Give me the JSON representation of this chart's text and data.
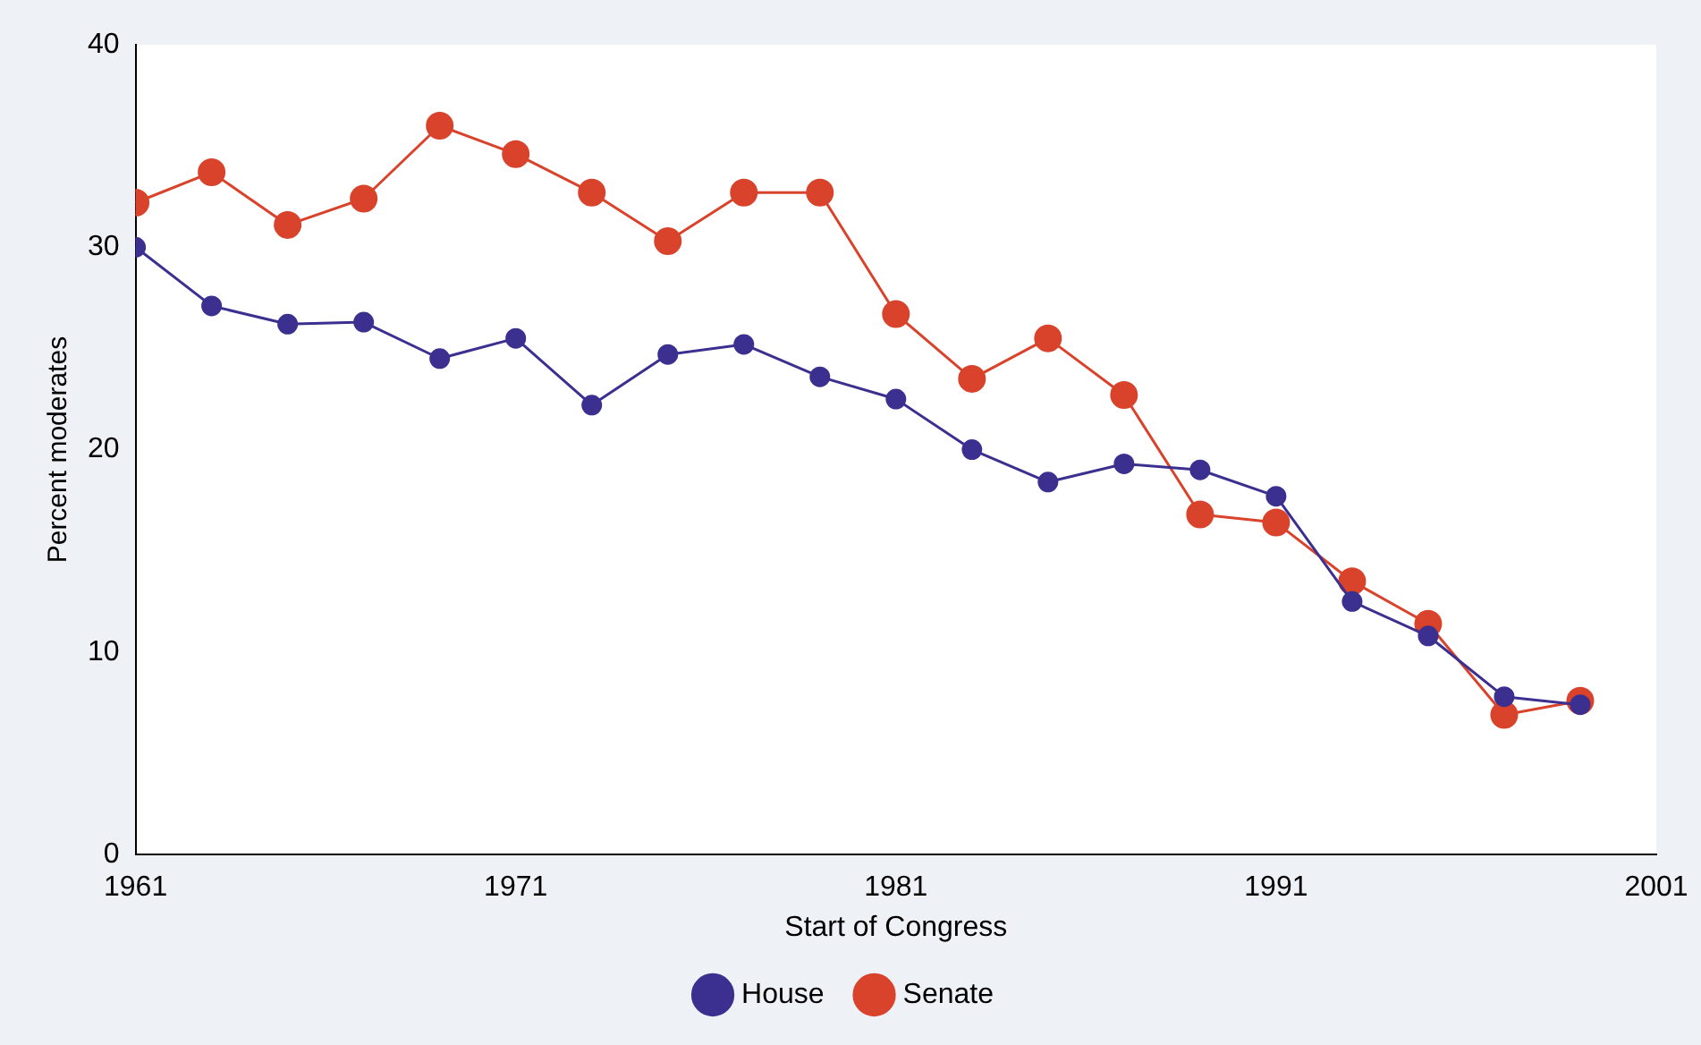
{
  "chart_data": {
    "type": "line",
    "xlabel": "Start of Congress",
    "ylabel": "Percent moderates",
    "x": [
      1961,
      1963,
      1965,
      1967,
      1969,
      1971,
      1973,
      1975,
      1977,
      1979,
      1981,
      1983,
      1985,
      1987,
      1989,
      1991,
      1993,
      1995,
      1997,
      1999
    ],
    "series": [
      {
        "name": "House",
        "color": "#3b2f8f",
        "values": [
          30.0,
          27.1,
          26.2,
          26.3,
          24.5,
          25.5,
          22.2,
          24.7,
          25.2,
          23.6,
          22.5,
          20.0,
          18.4,
          19.3,
          19.0,
          17.7,
          12.5,
          10.8,
          7.8,
          7.4
        ]
      },
      {
        "name": "Senate",
        "color": "#d9432b",
        "values": [
          32.2,
          33.7,
          31.1,
          32.4,
          36.0,
          34.6,
          32.7,
          30.3,
          32.7,
          32.7,
          26.7,
          23.5,
          25.5,
          22.7,
          16.8,
          16.4,
          13.5,
          11.4,
          6.9,
          7.6
        ]
      }
    ],
    "xlim": [
      1961,
      2001
    ],
    "xticks": [
      1961,
      1971,
      1981,
      1991,
      2001
    ],
    "ylim": [
      0,
      40
    ],
    "yticks": [
      0,
      10,
      20,
      30,
      40
    ],
    "grid": false,
    "legend": "bottom",
    "marker": "circle",
    "line_style": "solid"
  }
}
